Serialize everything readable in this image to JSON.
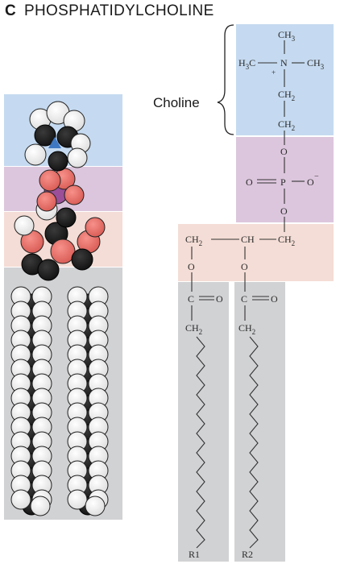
{
  "figure": {
    "panel_letter": "C",
    "title": "PHOSPHATIDYLCHOLINE",
    "group_label": "Choline",
    "choline": {
      "methyl_top": "CH3",
      "methyl_left": "H3C",
      "nitrogen": "N",
      "charge_plus": "+",
      "methyl_right": "CH3",
      "ch2_1": "CH2",
      "ch2_2": "CH2"
    },
    "phosphate": {
      "o_link_top": "O",
      "o_double": "O",
      "phosphorus": "P",
      "o_minus": "O",
      "charge_minus": "−",
      "o_link_bottom": "O"
    },
    "glycerol": {
      "ch2_left": "CH2",
      "ch_middle": "CH",
      "ch2_right": "CH2",
      "o_left": "O",
      "o_middle": "O"
    },
    "chains": [
      {
        "carbonyl_c": "C",
        "carbonyl_o": "O",
        "ch2": "CH2",
        "tail": "R1"
      },
      {
        "carbonyl_c": "C",
        "carbonyl_o": "O",
        "ch2": "CH2",
        "tail": "R2"
      }
    ],
    "colors": {
      "choline_region": "#c5daf0",
      "phosphate_region": "#dcc6dd",
      "glycerol_region": "#f4ddd6",
      "chain_region": "#d1d2d4",
      "atom_carbon": "#1c1c1c",
      "atom_hydrogen": "#f4f4f4",
      "atom_oxygen": "#ea6d66",
      "atom_phosphorus": "#9a4f98",
      "atom_nitrogen": "#3f78c2"
    }
  }
}
